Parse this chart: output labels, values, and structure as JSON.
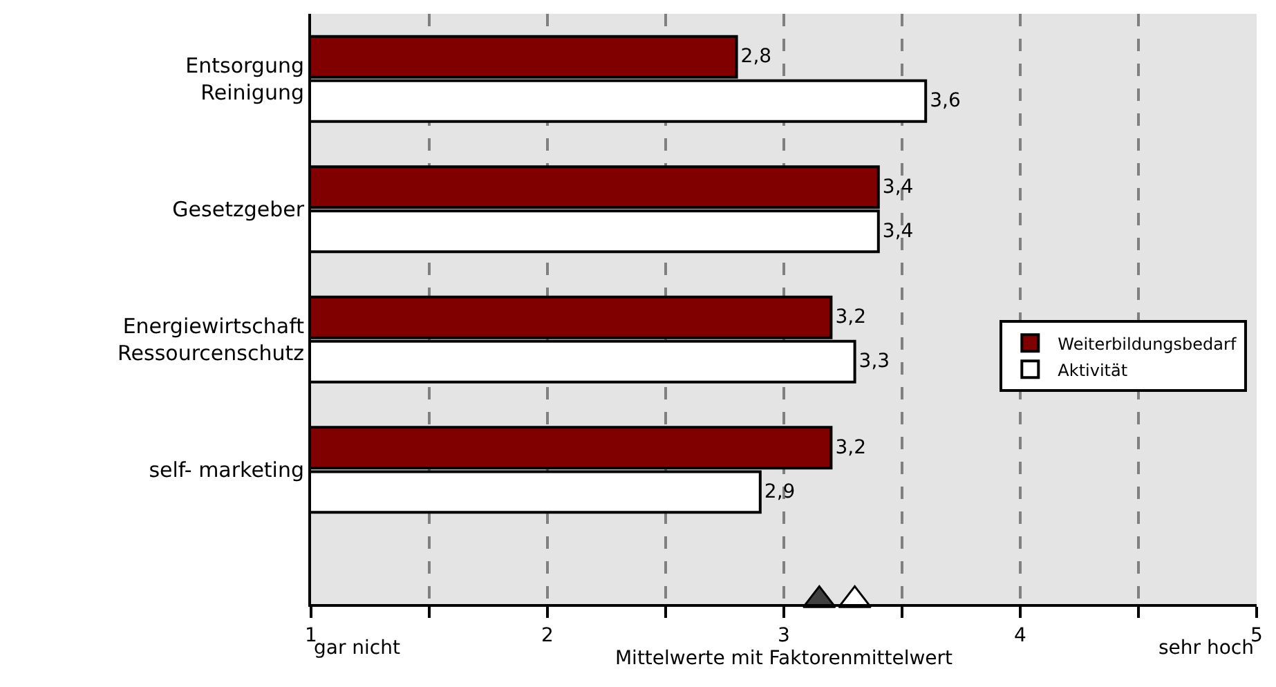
{
  "chart_data": {
    "type": "bar",
    "orientation": "horizontal",
    "categories": [
      "Entsorgung\nReinigung",
      "Gesetzgeber",
      "Energiewirtschaft\nRessourcenschutz",
      "self- marketing",
      null
    ],
    "series": [
      {
        "name": "Weiterbildungsbedarf",
        "color": "#800000",
        "values": [
          2.8,
          3.4,
          3.2,
          3.2,
          null
        ],
        "value_labels": [
          "2,8",
          "3,4",
          "3,2",
          "3,2",
          null
        ]
      },
      {
        "name": "Aktivität",
        "color": "#ffffff",
        "values": [
          3.6,
          3.4,
          3.3,
          2.9,
          null
        ],
        "value_labels": [
          "3,6",
          "3,4",
          "3,3",
          "2,9",
          null
        ]
      },
      {
        "type": "scatter",
        "marker": "triangle",
        "color": "#404040",
        "values": [
          null,
          null,
          null,
          null,
          3.15
        ]
      },
      {
        "type": "scatter",
        "marker": "triangle",
        "color": "#ffffff",
        "values": [
          null,
          null,
          null,
          null,
          3.3
        ]
      }
    ],
    "xlim": [
      1,
      5
    ],
    "xticks": [
      1,
      {
        "value": 1.5,
        "label": null
      },
      2,
      {
        "value": 2.5,
        "label": null
      },
      3,
      {
        "value": 3.5,
        "label": null
      },
      4,
      {
        "value": 4.5,
        "label": null
      },
      5
    ],
    "xlabel": "Mittelwerte mit Faktorenmittelwert",
    "annotations": [
      "gar nicht",
      "sehr hoch"
    ],
    "grid": "x",
    "legend": "right"
  }
}
